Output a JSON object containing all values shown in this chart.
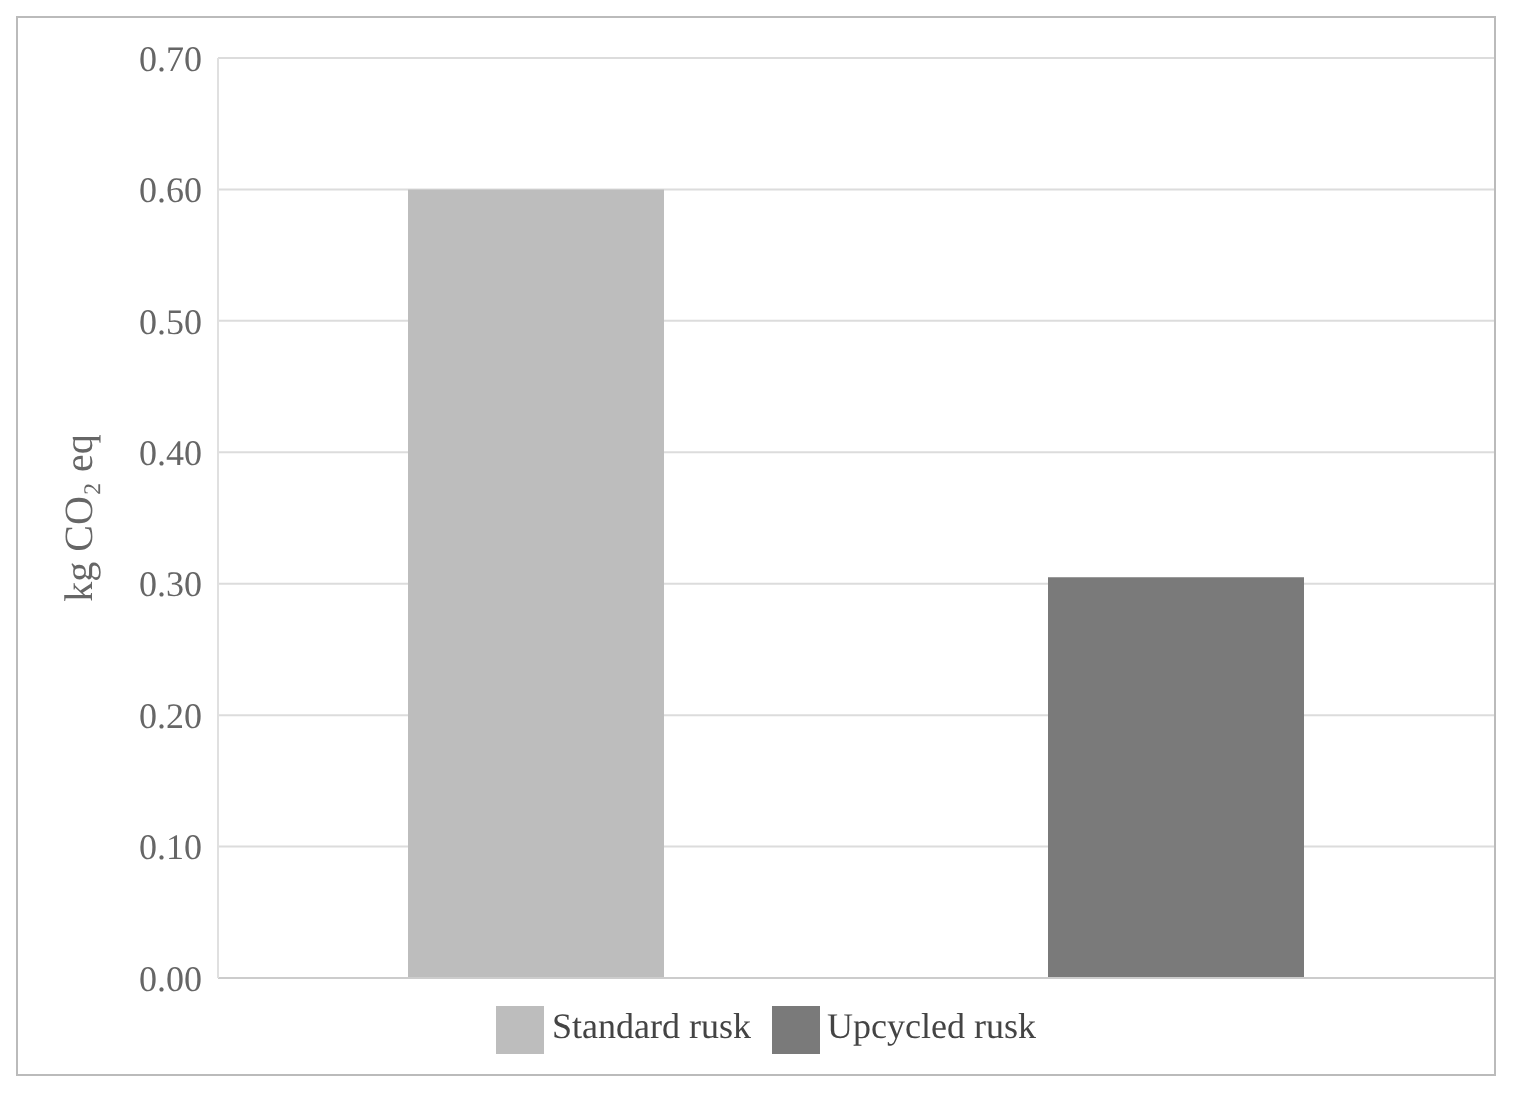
{
  "chart_data": {
    "type": "bar",
    "ylabel": "kg CO₂ eq",
    "categories": [
      null
    ],
    "series": [
      {
        "name": "Standard rusk",
        "color": "#bdbdbd",
        "values": [
          0.6
        ]
      },
      {
        "name": "Upcycled rusk",
        "color": "#7a7a7a",
        "values": [
          0.305
        ]
      }
    ],
    "ylim": [
      0,
      0.7
    ],
    "yticks": [
      {
        "value": 0,
        "label": "0.00"
      },
      {
        "value": 0.1,
        "label": "0.10"
      },
      {
        "value": 0.2,
        "label": "0.20"
      },
      {
        "value": 0.3,
        "label": "0.30"
      },
      {
        "value": 0.4,
        "label": "0.40"
      },
      {
        "value": 0.5,
        "label": "0.50"
      },
      {
        "value": 0.6,
        "label": "0.60"
      },
      {
        "value": 0.7,
        "label": "0.70"
      }
    ],
    "grid": "y",
    "legend": "bottom",
    "tick_labels": "y"
  }
}
